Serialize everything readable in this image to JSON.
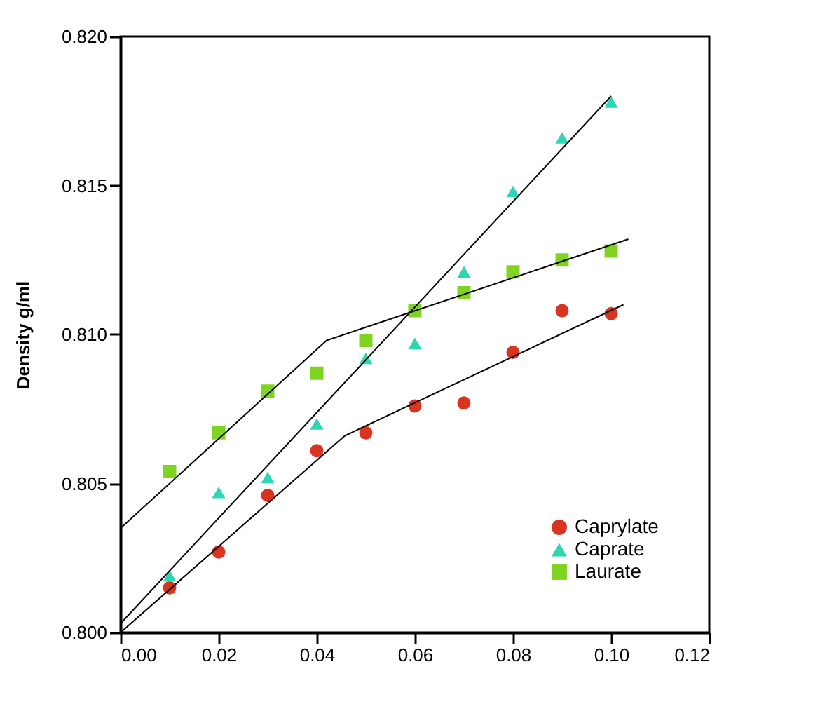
{
  "chart_data": {
    "type": "scatter",
    "ylabel": "Density g/ml",
    "x": [
      0.01,
      0.02,
      0.03,
      0.04,
      0.05,
      0.06,
      0.07,
      0.08,
      0.09,
      0.1
    ],
    "series": [
      {
        "name": "Caprylate",
        "color": "#d9341f",
        "marker": "circle",
        "values": [
          0.8015,
          0.8027,
          0.8046,
          0.8061,
          0.8067,
          0.8076,
          0.8077,
          0.8094,
          0.8108,
          0.8107
        ]
      },
      {
        "name": "Caprate",
        "color": "#2ed6b4",
        "marker": "triangle",
        "values": [
          0.8019,
          0.8047,
          0.8052,
          0.807,
          0.8092,
          0.8097,
          0.8121,
          0.8148,
          0.8166,
          0.8178
        ]
      },
      {
        "name": "Laurate",
        "color": "#7fd321",
        "marker": "square",
        "values": [
          0.8054,
          0.8067,
          0.8081,
          0.8087,
          0.8098,
          0.8108,
          0.8114,
          0.8121,
          0.8125,
          0.8128
        ]
      },
      {
        "type": "line",
        "color": "#000000",
        "marker": "none",
        "x": [
          0,
          0.0457,
          0.1025
        ],
        "values": [
          0.8,
          0.8066,
          0.811
        ]
      },
      {
        "type": "line",
        "color": "#000000",
        "marker": "none",
        "x": [
          0,
          0.1
        ],
        "values": [
          0.8003,
          0.818
        ]
      },
      {
        "type": "line",
        "color": "#000000",
        "marker": "none",
        "x": [
          0,
          0.042,
          0.1035
        ],
        "values": [
          0.8035,
          0.8098,
          0.8132
        ]
      }
    ],
    "xlim": [
      0,
      0.12
    ],
    "ylim": [
      0.8,
      0.82
    ],
    "xticks": [
      {
        "value": 0,
        "label": "0.00"
      },
      0.02,
      0.04,
      0.06,
      0.08,
      {
        "value": 0.1,
        "label": "0.10"
      },
      0.12
    ],
    "yticks": [
      {
        "value": 0.8,
        "label": "0.800"
      },
      0.805,
      {
        "value": 0.81,
        "label": "0.810"
      },
      0.815,
      {
        "value": 0.82,
        "label": "0.820"
      }
    ],
    "grid": false,
    "legend": "bottom right"
  }
}
